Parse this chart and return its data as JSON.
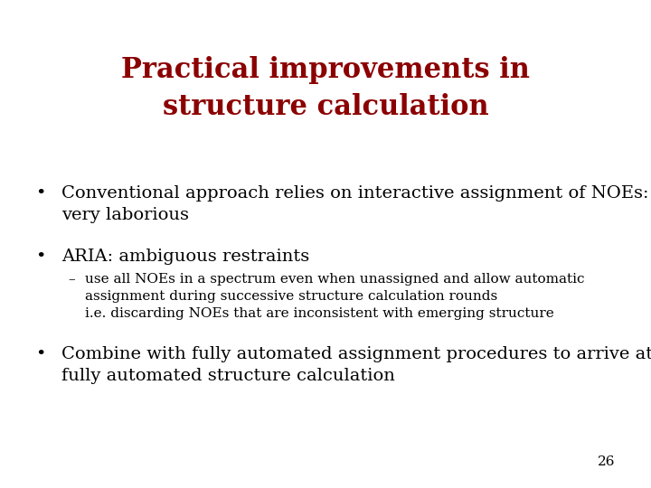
{
  "title_line1": "Practical improvements in",
  "title_line2": "structure calculation",
  "title_color": "#8B0000",
  "title_fontsize": 22,
  "title_fontweight": "bold",
  "bg_color": "#FFFFFF",
  "bullet1_line1": "Conventional approach relies on interactive assignment of NOEs:",
  "bullet1_line2": "very laborious",
  "bullet2": "ARIA: ambiguous restraints",
  "sub1_line1": "use all NOEs in a spectrum even when unassigned and allow automatic",
  "sub1_line2": "assignment during successive structure calculation rounds",
  "sub1_line3": "i.e. discarding NOEs that are inconsistent with emerging structure",
  "bullet3_line1": "Combine with fully automated assignment procedures to arrive at",
  "bullet3_line2": "fully automated structure calculation",
  "bullet_fontsize": 14,
  "sub_fontsize": 11,
  "text_color": "#000000",
  "page_number": "26",
  "page_fontsize": 11
}
